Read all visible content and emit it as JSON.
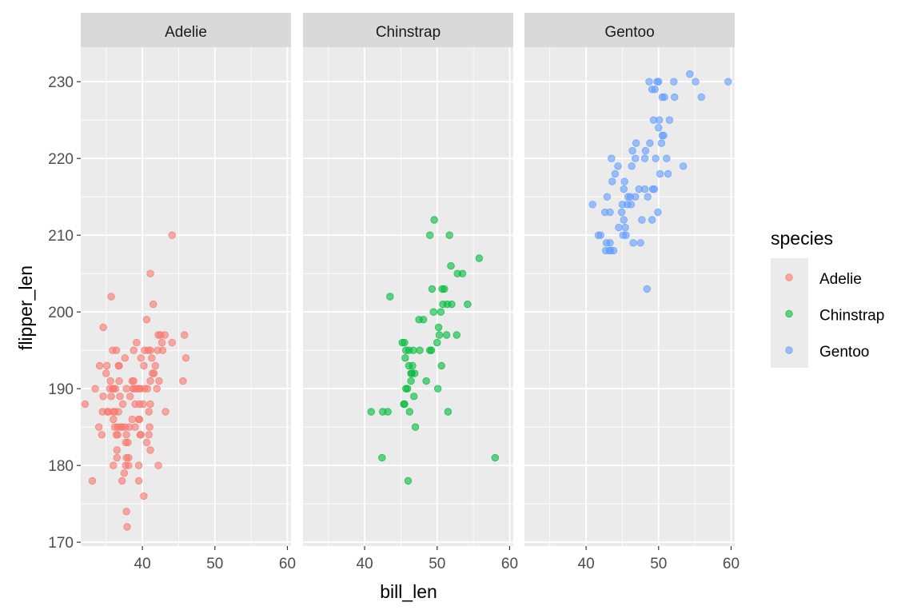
{
  "chart_data": {
    "type": "scatter",
    "xlabel": "bill_len",
    "ylabel": "flipper_len",
    "xlim": [
      31.5,
      60.5
    ],
    "ylim": [
      169.5,
      234.5
    ],
    "xticks": [
      40,
      50,
      60
    ],
    "yticks": [
      170,
      180,
      190,
      200,
      210,
      220,
      230
    ],
    "grid": true,
    "facet_by": "species",
    "legend": {
      "title": "species",
      "position": "right"
    },
    "series": [
      {
        "name": "Adelie",
        "color": "#F8766D",
        "points": [
          [
            32.1,
            188
          ],
          [
            33.1,
            178
          ],
          [
            33.5,
            190
          ],
          [
            34.0,
            185
          ],
          [
            34.1,
            193
          ],
          [
            34.4,
            184
          ],
          [
            34.5,
            187
          ],
          [
            34.6,
            189
          ],
          [
            34.6,
            198
          ],
          [
            35.0,
            192
          ],
          [
            35.1,
            193
          ],
          [
            35.2,
            187
          ],
          [
            35.3,
            187
          ],
          [
            35.5,
            190
          ],
          [
            35.6,
            191
          ],
          [
            35.7,
            189
          ],
          [
            35.7,
            202
          ],
          [
            35.9,
            190
          ],
          [
            35.9,
            195
          ],
          [
            36.0,
            180
          ],
          [
            36.0,
            186
          ],
          [
            36.0,
            187
          ],
          [
            36.0,
            190
          ],
          [
            36.2,
            185
          ],
          [
            36.2,
            187
          ],
          [
            36.3,
            190
          ],
          [
            36.4,
            184
          ],
          [
            36.4,
            195
          ],
          [
            36.5,
            181
          ],
          [
            36.5,
            182
          ],
          [
            36.6,
            184
          ],
          [
            36.6,
            185
          ],
          [
            36.7,
            187
          ],
          [
            36.7,
            193
          ],
          [
            36.8,
            191
          ],
          [
            36.8,
            193
          ],
          [
            36.9,
            189
          ],
          [
            37.0,
            185
          ],
          [
            37.2,
            178
          ],
          [
            37.2,
            185
          ],
          [
            37.3,
            188
          ],
          [
            37.5,
            179
          ],
          [
            37.6,
            185
          ],
          [
            37.6,
            194
          ],
          [
            37.7,
            180
          ],
          [
            37.7,
            183
          ],
          [
            37.8,
            174
          ],
          [
            37.8,
            184
          ],
          [
            37.8,
            190
          ],
          [
            37.8,
            181
          ],
          [
            37.9,
            172
          ],
          [
            38.0,
            183
          ],
          [
            38.1,
            180
          ],
          [
            38.1,
            181
          ],
          [
            38.2,
            185
          ],
          [
            38.3,
            189
          ],
          [
            38.6,
            186
          ],
          [
            38.6,
            191
          ],
          [
            38.7,
            190
          ],
          [
            38.8,
            191
          ],
          [
            38.8,
            195
          ],
          [
            38.9,
            190
          ],
          [
            39.0,
            185
          ],
          [
            39.0,
            188
          ],
          [
            39.2,
            190
          ],
          [
            39.2,
            196
          ],
          [
            39.5,
            178
          ],
          [
            39.5,
            186
          ],
          [
            39.5,
            180
          ],
          [
            39.6,
            186
          ],
          [
            39.6,
            188
          ],
          [
            39.6,
            190
          ],
          [
            39.7,
            184
          ],
          [
            39.7,
            190
          ],
          [
            39.8,
            184
          ],
          [
            39.8,
            194
          ],
          [
            40.1,
            188
          ],
          [
            40.2,
            176
          ],
          [
            40.2,
            193
          ],
          [
            40.3,
            190
          ],
          [
            40.3,
            195
          ],
          [
            40.6,
            183
          ],
          [
            40.6,
            199
          ],
          [
            40.7,
            190
          ],
          [
            40.8,
            195
          ],
          [
            40.9,
            184
          ],
          [
            40.9,
            187
          ],
          [
            41.0,
            185
          ],
          [
            41.1,
            182
          ],
          [
            41.1,
            191
          ],
          [
            41.1,
            188
          ],
          [
            41.1,
            195
          ],
          [
            41.1,
            205
          ],
          [
            41.3,
            194
          ],
          [
            41.4,
            192
          ],
          [
            41.5,
            201
          ],
          [
            41.6,
            192
          ],
          [
            41.8,
            193
          ],
          [
            42.0,
            190
          ],
          [
            42.1,
            195
          ],
          [
            42.2,
            180
          ],
          [
            42.2,
            197
          ],
          [
            42.3,
            191
          ],
          [
            42.5,
            197
          ],
          [
            42.7,
            196
          ],
          [
            42.8,
            195
          ],
          [
            43.1,
            197
          ],
          [
            43.2,
            187
          ],
          [
            44.1,
            196
          ],
          [
            44.1,
            210
          ],
          [
            45.6,
            191
          ],
          [
            45.8,
            197
          ],
          [
            46.0,
            194
          ]
        ]
      },
      {
        "name": "Chinstrap",
        "color": "#00BA38",
        "points": [
          [
            40.9,
            187
          ],
          [
            42.4,
            181
          ],
          [
            42.5,
            187
          ],
          [
            43.2,
            187
          ],
          [
            43.5,
            202
          ],
          [
            45.2,
            196
          ],
          [
            45.4,
            188
          ],
          [
            45.5,
            196
          ],
          [
            45.5,
            188
          ],
          [
            45.6,
            194
          ],
          [
            45.7,
            190
          ],
          [
            45.7,
            195
          ],
          [
            45.9,
            190
          ],
          [
            46.0,
            178
          ],
          [
            46.1,
            193
          ],
          [
            46.1,
            195
          ],
          [
            46.2,
            187
          ],
          [
            46.4,
            191
          ],
          [
            46.4,
            192
          ],
          [
            46.5,
            192
          ],
          [
            46.6,
            193
          ],
          [
            46.7,
            195
          ],
          [
            46.8,
            189
          ],
          [
            46.9,
            192
          ],
          [
            47.0,
            185
          ],
          [
            47.5,
            199
          ],
          [
            47.6,
            195
          ],
          [
            48.1,
            199
          ],
          [
            48.5,
            191
          ],
          [
            49.0,
            195
          ],
          [
            49.0,
            210
          ],
          [
            49.2,
            195
          ],
          [
            49.3,
            203
          ],
          [
            49.5,
            200
          ],
          [
            49.6,
            212
          ],
          [
            50.0,
            196
          ],
          [
            50.1,
            190
          ],
          [
            50.2,
            198
          ],
          [
            50.3,
            197
          ],
          [
            50.5,
            200
          ],
          [
            50.6,
            193
          ],
          [
            50.7,
            203
          ],
          [
            50.8,
            201
          ],
          [
            51.0,
            203
          ],
          [
            51.3,
            197
          ],
          [
            51.4,
            201
          ],
          [
            51.5,
            187
          ],
          [
            51.7,
            210
          ],
          [
            51.9,
            206
          ],
          [
            52.0,
            201
          ],
          [
            52.7,
            197
          ],
          [
            52.8,
            205
          ],
          [
            53.5,
            205
          ],
          [
            54.2,
            201
          ],
          [
            55.8,
            207
          ],
          [
            58.0,
            181
          ]
        ]
      },
      {
        "name": "Gentoo",
        "color": "#619CFF",
        "points": [
          [
            40.9,
            214
          ],
          [
            41.7,
            210
          ],
          [
            42.0,
            210
          ],
          [
            42.6,
            213
          ],
          [
            42.7,
            208
          ],
          [
            42.8,
            209
          ],
          [
            42.9,
            215
          ],
          [
            43.2,
            208
          ],
          [
            43.3,
            213
          ],
          [
            43.3,
            209
          ],
          [
            43.4,
            208
          ],
          [
            43.5,
            220
          ],
          [
            43.6,
            217
          ],
          [
            43.8,
            208
          ],
          [
            44.0,
            218
          ],
          [
            44.4,
            219
          ],
          [
            44.5,
            211
          ],
          [
            44.9,
            213
          ],
          [
            45.0,
            214
          ],
          [
            45.1,
            210
          ],
          [
            45.2,
            216
          ],
          [
            45.2,
            212
          ],
          [
            45.3,
            217
          ],
          [
            45.4,
            211
          ],
          [
            45.5,
            210
          ],
          [
            45.7,
            214
          ],
          [
            45.8,
            215
          ],
          [
            46.1,
            215
          ],
          [
            46.2,
            214
          ],
          [
            46.3,
            219
          ],
          [
            46.4,
            221
          ],
          [
            46.5,
            209
          ],
          [
            46.8,
            215
          ],
          [
            46.8,
            220
          ],
          [
            46.9,
            222
          ],
          [
            47.3,
            216
          ],
          [
            47.5,
            209
          ],
          [
            47.7,
            212
          ],
          [
            48.1,
            216
          ],
          [
            48.1,
            220
          ],
          [
            48.2,
            221
          ],
          [
            48.4,
            203
          ],
          [
            48.5,
            215
          ],
          [
            48.7,
            230
          ],
          [
            48.8,
            222
          ],
          [
            49.1,
            229
          ],
          [
            49.1,
            212
          ],
          [
            49.2,
            216
          ],
          [
            49.3,
            225
          ],
          [
            49.4,
            216
          ],
          [
            49.5,
            229
          ],
          [
            49.6,
            220
          ],
          [
            49.8,
            230
          ],
          [
            49.9,
            213
          ],
          [
            50.0,
            224
          ],
          [
            50.0,
            230
          ],
          [
            50.1,
            225
          ],
          [
            50.2,
            218
          ],
          [
            50.4,
            222
          ],
          [
            50.5,
            228
          ],
          [
            50.5,
            223
          ],
          [
            50.7,
            223
          ],
          [
            50.8,
            228
          ],
          [
            51.1,
            220
          ],
          [
            51.3,
            218
          ],
          [
            51.5,
            225
          ],
          [
            52.1,
            230
          ],
          [
            52.2,
            228
          ],
          [
            53.4,
            219
          ],
          [
            54.3,
            231
          ],
          [
            55.1,
            230
          ],
          [
            55.9,
            228
          ],
          [
            59.6,
            230
          ]
        ]
      }
    ]
  }
}
